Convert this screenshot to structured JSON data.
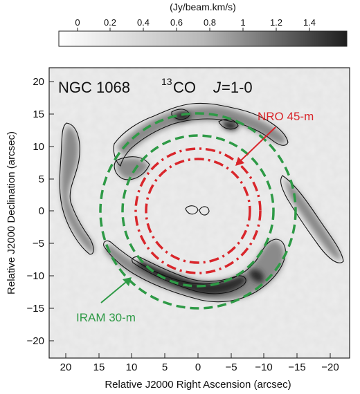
{
  "colorbar": {
    "label": "(Jy/beam.km/s)",
    "ticks": [
      "0",
      "0.2",
      "0.4",
      "0.6",
      "0.8",
      "1",
      "1.2",
      "1.4"
    ]
  },
  "panel": {
    "object": "NGC 1068",
    "isotope_sup": "13",
    "molecule": "CO",
    "transition_j": "J",
    "transition_rest": "=1-0"
  },
  "axes": {
    "xlabel": "Relative J2000 Right Ascension (arcsec)",
    "ylabel": "Relative J2000 Declination (arcsec)",
    "xticks": [
      "20",
      "15",
      "10",
      "5",
      "0",
      "−5",
      "−10",
      "−15",
      "−20"
    ],
    "yticks": [
      "20",
      "15",
      "10",
      "5",
      "0",
      "−5",
      "−10",
      "−15",
      "−20"
    ]
  },
  "annotations": {
    "nro": "NRO 45-m",
    "iram": "IRAM 30-m"
  },
  "colors": {
    "nro": "#d9262b",
    "iram": "#2e9a46",
    "contour": "#111111",
    "background": "#ededed"
  }
}
